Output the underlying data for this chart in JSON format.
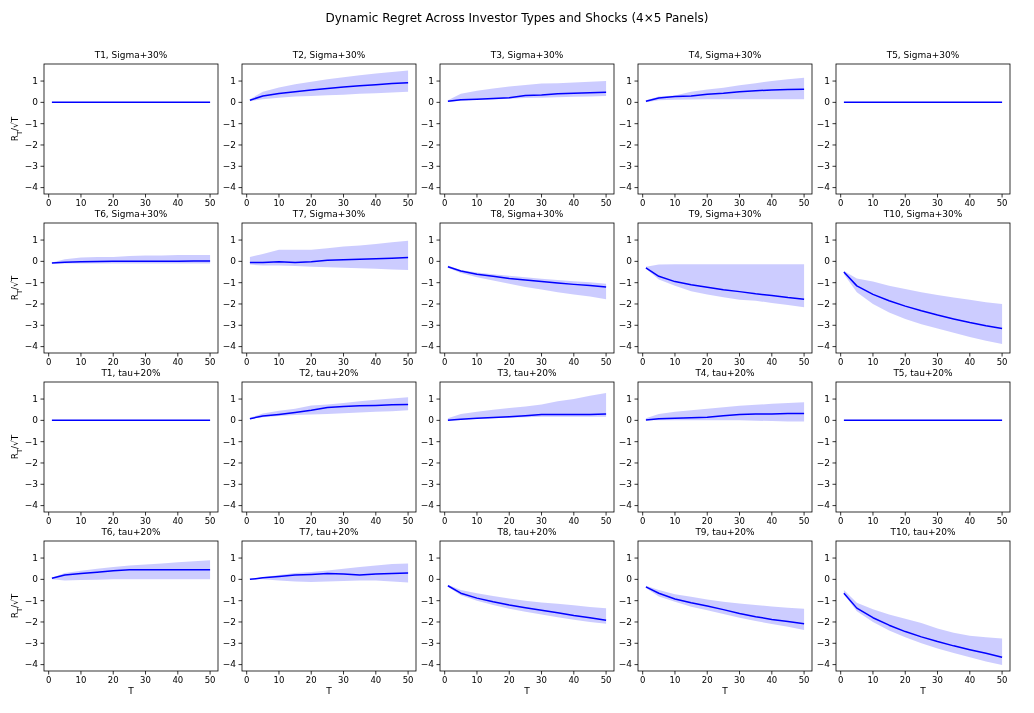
{
  "chart_data": [
    {
      "type": "line",
      "title": "T1, Sigma+30%",
      "ylabel": "R$_{T}$/√T",
      "annotations": [
        "Dynamic Regret Across Investor Types and Shocks (4×5 Panels)"
      ],
      "x": [
        1,
        5,
        10,
        15,
        20,
        25,
        30,
        35,
        40,
        45,
        50
      ],
      "series": [
        {
          "color": "#0000ff",
          "values": [
            0,
            0,
            0,
            0,
            0,
            0,
            0,
            0,
            0,
            0,
            0
          ]
        }
      ],
      "xlim": [
        -1.45,
        52.45
      ],
      "ylim": [
        -4.3,
        1.8
      ],
      "xticks": [
        0,
        10,
        20,
        30,
        40,
        50
      ],
      "yticks": [
        -4,
        -3,
        -2,
        -1,
        0,
        1
      ]
    },
    {
      "type": "line",
      "title": "T2, Sigma+30%",
      "x": [
        1,
        5,
        10,
        15,
        20,
        25,
        30,
        35,
        40,
        45,
        50
      ],
      "series": [
        {
          "color": "#0000ff",
          "values": [
            0.1,
            0.3,
            0.42,
            0.5,
            0.58,
            0.65,
            0.72,
            0.78,
            0.83,
            0.88,
            0.92
          ],
          "lower": [
            0.05,
            0.15,
            0.22,
            0.27,
            0.3,
            0.33,
            0.36,
            0.4,
            0.43,
            0.46,
            0.5
          ],
          "upper": [
            0.15,
            0.5,
            0.7,
            0.85,
            0.97,
            1.08,
            1.18,
            1.27,
            1.35,
            1.42,
            1.5
          ]
        }
      ],
      "xlim": [
        -1.45,
        52.45
      ],
      "ylim": [
        -4.3,
        1.8
      ],
      "xticks": [
        0,
        10,
        20,
        30,
        40,
        50
      ],
      "yticks": [
        -4,
        -3,
        -2,
        -1,
        0,
        1
      ]
    },
    {
      "type": "line",
      "title": "T3, Sigma+30%",
      "x": [
        1,
        5,
        10,
        15,
        20,
        25,
        30,
        35,
        40,
        45,
        50
      ],
      "series": [
        {
          "color": "#0000ff",
          "values": [
            0.05,
            0.12,
            0.15,
            0.18,
            0.22,
            0.32,
            0.35,
            0.4,
            0.43,
            0.45,
            0.47
          ],
          "lower": [
            0.02,
            0.08,
            0.12,
            0.14,
            0.17,
            0.2,
            0.22,
            0.24,
            0.26,
            0.28,
            0.3
          ],
          "upper": [
            0.1,
            0.4,
            0.55,
            0.65,
            0.75,
            0.82,
            0.88,
            0.9,
            0.93,
            0.97,
            1.0
          ]
        }
      ],
      "xlim": [
        -1.45,
        52.45
      ],
      "ylim": [
        -4.3,
        1.8
      ],
      "xticks": [
        0,
        10,
        20,
        30,
        40,
        50
      ],
      "yticks": [
        -4,
        -3,
        -2,
        -1,
        0,
        1
      ]
    },
    {
      "type": "line",
      "title": "T4, Sigma+30%",
      "x": [
        1,
        5,
        10,
        15,
        20,
        25,
        30,
        35,
        40,
        45,
        50
      ],
      "series": [
        {
          "color": "#0000ff",
          "values": [
            0.05,
            0.2,
            0.27,
            0.3,
            0.38,
            0.43,
            0.5,
            0.55,
            0.58,
            0.6,
            0.62
          ],
          "lower": [
            0.0,
            0.1,
            0.12,
            0.13,
            0.15,
            0.15,
            0.15,
            0.15,
            0.15,
            0.15,
            0.15
          ],
          "upper": [
            0.1,
            0.28,
            0.32,
            0.5,
            0.6,
            0.68,
            0.8,
            0.9,
            1.0,
            1.08,
            1.15
          ]
        }
      ],
      "xlim": [
        -1.45,
        52.45
      ],
      "ylim": [
        -4.3,
        1.8
      ],
      "xticks": [
        0,
        10,
        20,
        30,
        40,
        50
      ],
      "yticks": [
        -4,
        -3,
        -2,
        -1,
        0,
        1
      ]
    },
    {
      "type": "line",
      "title": "T5, Sigma+30%",
      "x": [
        1,
        5,
        10,
        15,
        20,
        25,
        30,
        35,
        40,
        45,
        50
      ],
      "series": [
        {
          "color": "#0000ff",
          "values": [
            0,
            0,
            0,
            0,
            0,
            0,
            0,
            0,
            0,
            0,
            0
          ]
        }
      ],
      "xlim": [
        -1.45,
        52.45
      ],
      "ylim": [
        -4.3,
        1.8
      ],
      "xticks": [
        0,
        10,
        20,
        30,
        40,
        50
      ],
      "yticks": [
        -4,
        -3,
        -2,
        -1,
        0,
        1
      ]
    },
    {
      "type": "line",
      "title": "T6, Sigma+30%",
      "ylabel": "R$_{T}$/√T",
      "x": [
        1,
        5,
        10,
        15,
        20,
        25,
        30,
        35,
        40,
        45,
        50
      ],
      "series": [
        {
          "color": "#0000ff",
          "values": [
            -0.08,
            -0.04,
            -0.02,
            -0.01,
            0,
            0,
            0,
            0.01,
            0.01,
            0.02,
            0.02
          ],
          "lower": [
            -0.1,
            -0.1,
            -0.1,
            -0.1,
            -0.1,
            -0.1,
            -0.1,
            -0.1,
            -0.1,
            -0.1,
            -0.1
          ],
          "upper": [
            -0.05,
            0.1,
            0.18,
            0.2,
            0.2,
            0.25,
            0.27,
            0.28,
            0.3,
            0.3,
            0.3
          ]
        }
      ],
      "xlim": [
        -1.45,
        52.45
      ],
      "ylim": [
        -4.3,
        1.8
      ],
      "xticks": [
        0,
        10,
        20,
        30,
        40,
        50
      ],
      "yticks": [
        -4,
        -3,
        -2,
        -1,
        0,
        1
      ]
    },
    {
      "type": "line",
      "title": "T7, Sigma+30%",
      "x": [
        1,
        5,
        10,
        15,
        20,
        25,
        30,
        35,
        40,
        45,
        50
      ],
      "series": [
        {
          "color": "#0000ff",
          "values": [
            -0.05,
            -0.05,
            -0.02,
            -0.05,
            -0.02,
            0.05,
            0.08,
            0.1,
            0.12,
            0.15,
            0.18
          ],
          "lower": [
            -0.15,
            -0.2,
            -0.2,
            -0.22,
            -0.25,
            -0.28,
            -0.3,
            -0.32,
            -0.35,
            -0.38,
            -0.4
          ],
          "upper": [
            0.2,
            0.35,
            0.55,
            0.55,
            0.55,
            0.62,
            0.7,
            0.75,
            0.82,
            0.9,
            0.97
          ]
        }
      ],
      "xlim": [
        -1.45,
        52.45
      ],
      "ylim": [
        -4.3,
        1.8
      ],
      "xticks": [
        0,
        10,
        20,
        30,
        40,
        50
      ],
      "yticks": [
        -4,
        -3,
        -2,
        -1,
        0,
        1
      ]
    },
    {
      "type": "line",
      "title": "T8, Sigma+30%",
      "x": [
        1,
        5,
        10,
        15,
        20,
        25,
        30,
        35,
        40,
        45,
        50
      ],
      "series": [
        {
          "color": "#0000ff",
          "values": [
            -0.25,
            -0.45,
            -0.6,
            -0.7,
            -0.8,
            -0.88,
            -0.95,
            -1.02,
            -1.08,
            -1.13,
            -1.2
          ],
          "lower": [
            -0.3,
            -0.55,
            -0.75,
            -0.9,
            -1.05,
            -1.2,
            -1.32,
            -1.45,
            -1.55,
            -1.65,
            -1.78
          ],
          "upper": [
            -0.2,
            -0.4,
            -0.52,
            -0.6,
            -0.68,
            -0.75,
            -0.82,
            -0.88,
            -0.93,
            -0.98,
            -1.05
          ]
        }
      ],
      "xlim": [
        -1.45,
        52.45
      ],
      "ylim": [
        -4.3,
        1.8
      ],
      "xticks": [
        0,
        10,
        20,
        30,
        40,
        50
      ],
      "yticks": [
        -4,
        -3,
        -2,
        -1,
        0,
        1
      ]
    },
    {
      "type": "line",
      "title": "T9, Sigma+30%",
      "x": [
        1,
        5,
        10,
        15,
        20,
        25,
        30,
        35,
        40,
        45,
        50
      ],
      "series": [
        {
          "color": "#0000ff",
          "values": [
            -0.3,
            -0.7,
            -0.95,
            -1.1,
            -1.22,
            -1.33,
            -1.42,
            -1.52,
            -1.6,
            -1.7,
            -1.78
          ],
          "lower": [
            -0.35,
            -0.85,
            -1.15,
            -1.4,
            -1.55,
            -1.68,
            -1.8,
            -1.85,
            -1.95,
            -2.05,
            -2.15
          ],
          "upper": [
            -0.25,
            -0.15,
            -0.13,
            -0.13,
            -0.13,
            -0.13,
            -0.13,
            -0.13,
            -0.13,
            -0.13,
            -0.13
          ]
        }
      ],
      "xlim": [
        -1.45,
        52.45
      ],
      "ylim": [
        -4.3,
        1.8
      ],
      "xticks": [
        0,
        10,
        20,
        30,
        40,
        50
      ],
      "yticks": [
        -4,
        -3,
        -2,
        -1,
        0,
        1
      ]
    },
    {
      "type": "line",
      "title": "T10, Sigma+30%",
      "x": [
        1,
        5,
        10,
        15,
        20,
        25,
        30,
        35,
        40,
        45,
        50
      ],
      "series": [
        {
          "color": "#0000ff",
          "values": [
            -0.5,
            -1.15,
            -1.55,
            -1.85,
            -2.1,
            -2.32,
            -2.52,
            -2.7,
            -2.87,
            -3.02,
            -3.15
          ],
          "lower": [
            -0.6,
            -1.45,
            -2.0,
            -2.4,
            -2.7,
            -2.95,
            -3.15,
            -3.35,
            -3.55,
            -3.72,
            -3.88
          ],
          "upper": [
            -0.45,
            -0.8,
            -0.95,
            -1.15,
            -1.3,
            -1.45,
            -1.58,
            -1.7,
            -1.8,
            -1.92,
            -2.0
          ]
        }
      ],
      "xlim": [
        -1.45,
        52.45
      ],
      "ylim": [
        -4.3,
        1.8
      ],
      "xticks": [
        0,
        10,
        20,
        30,
        40,
        50
      ],
      "yticks": [
        -4,
        -3,
        -2,
        -1,
        0,
        1
      ]
    },
    {
      "type": "line",
      "title": "T1, tau+20%",
      "ylabel": "R$_{T}$/√T",
      "x": [
        1,
        5,
        10,
        15,
        20,
        25,
        30,
        35,
        40,
        45,
        50
      ],
      "series": [
        {
          "color": "#0000ff",
          "values": [
            0,
            0,
            0,
            0,
            0,
            0,
            0,
            0,
            0,
            0,
            0
          ]
        }
      ],
      "xlim": [
        -1.45,
        52.45
      ],
      "ylim": [
        -4.3,
        1.8
      ],
      "xticks": [
        0,
        10,
        20,
        30,
        40,
        50
      ],
      "yticks": [
        -4,
        -3,
        -2,
        -1,
        0,
        1
      ]
    },
    {
      "type": "line",
      "title": "T2, tau+20%",
      "x": [
        1,
        5,
        10,
        15,
        20,
        25,
        30,
        35,
        40,
        45,
        50
      ],
      "series": [
        {
          "color": "#0000ff",
          "values": [
            0.08,
            0.2,
            0.28,
            0.37,
            0.47,
            0.6,
            0.65,
            0.68,
            0.7,
            0.73,
            0.75
          ],
          "lower": [
            0.05,
            0.15,
            0.2,
            0.25,
            0.28,
            0.3,
            0.33,
            0.37,
            0.4,
            0.43,
            0.47
          ],
          "upper": [
            0.12,
            0.32,
            0.45,
            0.55,
            0.7,
            0.75,
            0.82,
            0.9,
            0.97,
            1.03,
            1.08
          ]
        }
      ],
      "xlim": [
        -1.45,
        52.45
      ],
      "ylim": [
        -4.3,
        1.8
      ],
      "xticks": [
        0,
        10,
        20,
        30,
        40,
        50
      ],
      "yticks": [
        -4,
        -3,
        -2,
        -1,
        0,
        1
      ]
    },
    {
      "type": "line",
      "title": "T3, tau+20%",
      "x": [
        1,
        5,
        10,
        15,
        20,
        25,
        30,
        35,
        40,
        45,
        50
      ],
      "series": [
        {
          "color": "#0000ff",
          "values": [
            0.0,
            0.05,
            0.1,
            0.13,
            0.17,
            0.22,
            0.27,
            0.28,
            0.28,
            0.28,
            0.3
          ],
          "lower": [
            0,
            0.03,
            0.07,
            0.1,
            0.12,
            0.15,
            0.17,
            0.17,
            0.17,
            0.17,
            0.17
          ],
          "upper": [
            0.1,
            0.3,
            0.4,
            0.5,
            0.58,
            0.65,
            0.75,
            0.9,
            1.0,
            1.15,
            1.28
          ]
        }
      ],
      "xlim": [
        -1.45,
        52.45
      ],
      "ylim": [
        -4.3,
        1.8
      ],
      "xticks": [
        0,
        10,
        20,
        30,
        40,
        50
      ],
      "yticks": [
        -4,
        -3,
        -2,
        -1,
        0,
        1
      ]
    },
    {
      "type": "line",
      "title": "T4, tau+20%",
      "x": [
        1,
        5,
        10,
        15,
        20,
        25,
        30,
        35,
        40,
        45,
        50
      ],
      "series": [
        {
          "color": "#0000ff",
          "values": [
            0.02,
            0.07,
            0.1,
            0.12,
            0.15,
            0.22,
            0.27,
            0.3,
            0.3,
            0.32,
            0.32
          ],
          "lower": [
            0,
            0,
            0,
            0,
            0,
            0,
            0,
            -0.02,
            -0.03,
            -0.05,
            -0.05
          ],
          "upper": [
            0.1,
            0.3,
            0.4,
            0.48,
            0.55,
            0.62,
            0.68,
            0.73,
            0.78,
            0.82,
            0.85
          ]
        }
      ],
      "xlim": [
        -1.45,
        52.45
      ],
      "ylim": [
        -4.3,
        1.8
      ],
      "xticks": [
        0,
        10,
        20,
        30,
        40,
        50
      ],
      "yticks": [
        -4,
        -3,
        -2,
        -1,
        0,
        1
      ]
    },
    {
      "type": "line",
      "title": "T5, tau+20%",
      "x": [
        1,
        5,
        10,
        15,
        20,
        25,
        30,
        35,
        40,
        45,
        50
      ],
      "series": [
        {
          "color": "#0000ff",
          "values": [
            0,
            0,
            0,
            0,
            0,
            0,
            0,
            0,
            0,
            0,
            0
          ]
        }
      ],
      "xlim": [
        -1.45,
        52.45
      ],
      "ylim": [
        -4.3,
        1.8
      ],
      "xticks": [
        0,
        10,
        20,
        30,
        40,
        50
      ],
      "yticks": [
        -4,
        -3,
        -2,
        -1,
        0,
        1
      ]
    },
    {
      "type": "line",
      "title": "T6, tau+20%",
      "xlabel": "T",
      "ylabel": "R$_{T}$/√T",
      "x": [
        1,
        5,
        10,
        15,
        20,
        25,
        30,
        35,
        40,
        45,
        50
      ],
      "series": [
        {
          "color": "#0000ff",
          "values": [
            0.05,
            0.2,
            0.27,
            0.33,
            0.4,
            0.45,
            0.45,
            0.45,
            0.45,
            0.45,
            0.45
          ],
          "lower": [
            0,
            -0.05,
            -0.03,
            -0.02,
            0,
            0,
            0,
            0,
            0,
            0,
            0
          ],
          "upper": [
            0.08,
            0.3,
            0.4,
            0.5,
            0.58,
            0.65,
            0.7,
            0.75,
            0.8,
            0.85,
            0.9
          ]
        }
      ],
      "xlim": [
        -1.45,
        52.45
      ],
      "ylim": [
        -4.3,
        1.8
      ],
      "xticks": [
        0,
        10,
        20,
        30,
        40,
        50
      ],
      "yticks": [
        -4,
        -3,
        -2,
        -1,
        0,
        1
      ]
    },
    {
      "type": "line",
      "title": "T7, tau+20%",
      "xlabel": "T",
      "x": [
        1,
        5,
        10,
        15,
        20,
        25,
        30,
        35,
        40,
        45,
        50
      ],
      "series": [
        {
          "color": "#0000ff",
          "values": [
            0,
            0.07,
            0.13,
            0.2,
            0.23,
            0.27,
            0.25,
            0.2,
            0.25,
            0.27,
            0.3
          ],
          "lower": [
            0,
            0,
            -0.05,
            -0.1,
            -0.12,
            -0.1,
            -0.08,
            -0.05,
            -0.05,
            -0.1,
            -0.15
          ],
          "upper": [
            0.02,
            0.1,
            0.2,
            0.3,
            0.35,
            0.42,
            0.5,
            0.58,
            0.65,
            0.72,
            0.75
          ]
        }
      ],
      "xlim": [
        -1.45,
        52.45
      ],
      "ylim": [
        -4.3,
        1.8
      ],
      "xticks": [
        0,
        10,
        20,
        30,
        40,
        50
      ],
      "yticks": [
        -4,
        -3,
        -2,
        -1,
        0,
        1
      ]
    },
    {
      "type": "line",
      "title": "T8, tau+20%",
      "xlabel": "T",
      "x": [
        1,
        5,
        10,
        15,
        20,
        25,
        30,
        35,
        40,
        45,
        50
      ],
      "series": [
        {
          "color": "#0000ff",
          "values": [
            -0.3,
            -0.65,
            -0.88,
            -1.05,
            -1.2,
            -1.33,
            -1.45,
            -1.57,
            -1.7,
            -1.8,
            -1.92
          ],
          "lower": [
            -0.35,
            -0.75,
            -1.0,
            -1.2,
            -1.38,
            -1.52,
            -1.65,
            -1.78,
            -1.9,
            -2.0,
            -2.08
          ],
          "upper": [
            -0.25,
            -0.5,
            -0.65,
            -0.78,
            -0.9,
            -1.0,
            -1.08,
            -1.15,
            -1.22,
            -1.3,
            -1.35
          ]
        }
      ],
      "xlim": [
        -1.45,
        52.45
      ],
      "ylim": [
        -4.3,
        1.8
      ],
      "xticks": [
        0,
        10,
        20,
        30,
        40,
        50
      ],
      "yticks": [
        -4,
        -3,
        -2,
        -1,
        0,
        1
      ]
    },
    {
      "type": "line",
      "title": "T9, tau+20%",
      "xlabel": "T",
      "x": [
        1,
        5,
        10,
        15,
        20,
        25,
        30,
        35,
        40,
        45,
        50
      ],
      "series": [
        {
          "color": "#0000ff",
          "values": [
            -0.35,
            -0.65,
            -0.92,
            -1.1,
            -1.25,
            -1.42,
            -1.6,
            -1.75,
            -1.88,
            -1.98,
            -2.08
          ],
          "lower": [
            -0.4,
            -0.8,
            -1.05,
            -1.28,
            -1.45,
            -1.63,
            -1.8,
            -1.95,
            -2.1,
            -2.22,
            -2.38
          ],
          "upper": [
            -0.3,
            -0.5,
            -0.7,
            -0.82,
            -0.95,
            -1.05,
            -1.13,
            -1.2,
            -1.27,
            -1.33,
            -1.38
          ]
        }
      ],
      "xlim": [
        -1.45,
        52.45
      ],
      "ylim": [
        -4.3,
        1.8
      ],
      "xticks": [
        0,
        10,
        20,
        30,
        40,
        50
      ],
      "yticks": [
        -4,
        -3,
        -2,
        -1,
        0,
        1
      ]
    },
    {
      "type": "line",
      "title": "T10, tau+20%",
      "xlabel": "T",
      "x": [
        1,
        5,
        10,
        15,
        20,
        25,
        30,
        35,
        40,
        45,
        50
      ],
      "series": [
        {
          "color": "#0000ff",
          "values": [
            -0.65,
            -1.35,
            -1.8,
            -2.15,
            -2.45,
            -2.7,
            -2.92,
            -3.12,
            -3.3,
            -3.47,
            -3.65
          ],
          "lower": [
            -0.7,
            -1.5,
            -2.0,
            -2.4,
            -2.72,
            -3.0,
            -3.25,
            -3.45,
            -3.65,
            -3.85,
            -4.02
          ],
          "upper": [
            -0.5,
            -1.1,
            -1.4,
            -1.65,
            -1.85,
            -2.05,
            -2.3,
            -2.5,
            -2.65,
            -2.72,
            -2.78
          ]
        }
      ],
      "xlim": [
        -1.45,
        52.45
      ],
      "ylim": [
        -4.3,
        1.8
      ],
      "xticks": [
        0,
        10,
        20,
        30,
        40,
        50
      ],
      "yticks": [
        -4,
        -3,
        -2,
        -1,
        0,
        1
      ]
    }
  ]
}
